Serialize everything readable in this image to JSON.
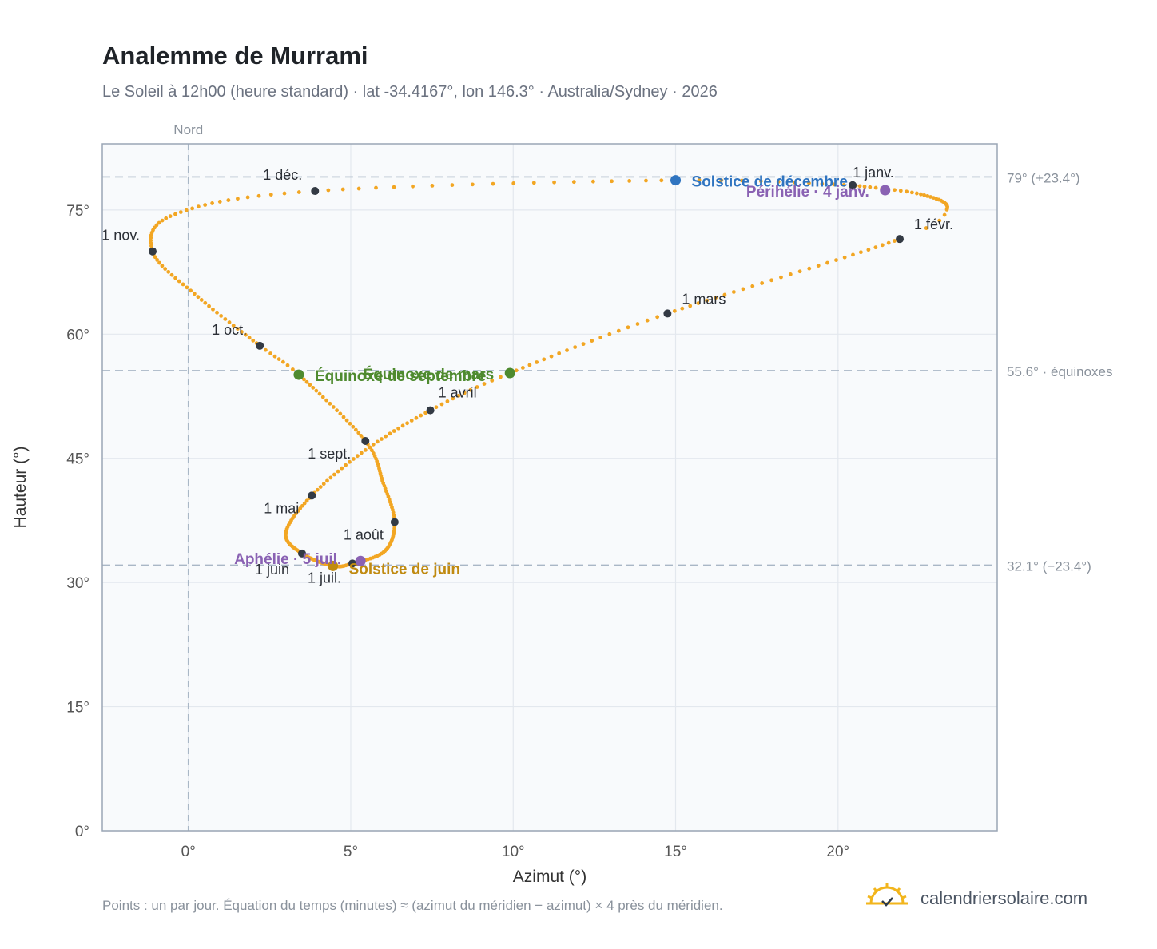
{
  "header": {
    "title": "Analemme de Murrami",
    "subtitle": "Le Soleil à 12h00 (heure standard) · lat -34.4167°, lon 146.3° · Australia/Sydney · 2026"
  },
  "footer": {
    "note": "Points : un par jour. Équation du temps (minutes) ≈ (azimut du méridien − azimut) × 4 près du méridien.",
    "brand": "calendriersolaire.com"
  },
  "colors": {
    "curve": "#f2a623",
    "month_marker": "#333a44",
    "equinox": "#4e8a2f",
    "december_solstice": "#2f74c0",
    "june_solstice": "#c08a10",
    "apsis": "#8a62b3",
    "reference_line": "#a9b7c6",
    "plot_background": "#f8fafc",
    "grid": "#e3e8ee"
  },
  "chart_data": {
    "type": "scatter",
    "title": "Analemme de Murrami",
    "xlabel": "Azimut (°)",
    "ylabel": "Hauteur (°)",
    "xlim": [
      -2.65,
      24.9
    ],
    "ylim": [
      0,
      83
    ],
    "x_ticks": [
      0,
      5,
      10,
      15,
      20
    ],
    "x_tick_labels": [
      "0°",
      "5°",
      "10°",
      "15°",
      "20°"
    ],
    "y_ticks": [
      0,
      15,
      30,
      45,
      60,
      75
    ],
    "y_tick_labels": [
      "0°",
      "15°",
      "30°",
      "45°",
      "60°",
      "75°"
    ],
    "grid": true,
    "north_line": {
      "x": 0,
      "label": "Nord"
    },
    "reference_lines": [
      {
        "y": 79.0,
        "label": "79° (+23.4°)"
      },
      {
        "y": 55.6,
        "label": "55.6° · équinoxes"
      },
      {
        "y": 32.1,
        "label": "32.1° (−23.4°)"
      }
    ],
    "month_markers": [
      {
        "label": "1 janv.",
        "x": 20.45,
        "y": 78.0
      },
      {
        "label": "1 févr.",
        "x": 21.9,
        "y": 71.5
      },
      {
        "label": "1 mars",
        "x": 14.75,
        "y": 62.5
      },
      {
        "label": "1 avril",
        "x": 7.45,
        "y": 50.8
      },
      {
        "label": "1 mai",
        "x": 3.8,
        "y": 40.5
      },
      {
        "label": "1 juin",
        "x": 3.5,
        "y": 33.5
      },
      {
        "label": "1 juil.",
        "x": 5.05,
        "y": 32.3
      },
      {
        "label": "1 août",
        "x": 6.35,
        "y": 37.3
      },
      {
        "label": "1 sept.",
        "x": 5.45,
        "y": 47.1
      },
      {
        "label": "1 oct.",
        "x": 2.2,
        "y": 58.6
      },
      {
        "label": "1 nov.",
        "x": -1.1,
        "y": 70.0
      },
      {
        "label": "1 déc.",
        "x": 3.9,
        "y": 77.3
      }
    ],
    "events": [
      {
        "label": "Solstice de décembre",
        "x": 15.0,
        "y": 78.6,
        "kind": "december_solstice"
      },
      {
        "label": "Périhélie · 4 janv.",
        "x": 21.45,
        "y": 77.4,
        "kind": "apsis"
      },
      {
        "label": "Équinoxe de mars",
        "x": 9.9,
        "y": 55.3,
        "kind": "equinox"
      },
      {
        "label": "Équinoxe de septembre",
        "x": 3.4,
        "y": 55.1,
        "kind": "equinox"
      },
      {
        "label": "Solstice de juin",
        "x": 4.45,
        "y": 32.0,
        "kind": "june_solstice"
      },
      {
        "label": "Aphélie · 5 juil.",
        "x": 5.3,
        "y": 32.6,
        "kind": "apsis"
      }
    ],
    "daily_path_keypoints": [
      {
        "day": 1,
        "x": 20.45,
        "y": 78.0
      },
      {
        "day": 14,
        "x": 22.55,
        "y": 76.9
      },
      {
        "day": 28,
        "x": 23.35,
        "y": 75.05
      },
      {
        "day": 32,
        "x": 21.9,
        "y": 71.5
      },
      {
        "day": 60,
        "x": 14.75,
        "y": 62.5
      },
      {
        "day": 79,
        "x": 9.9,
        "y": 55.3
      },
      {
        "day": 91,
        "x": 7.45,
        "y": 50.8
      },
      {
        "day": 106,
        "x": 5.45,
        "y": 46.0
      },
      {
        "day": 121,
        "x": 3.8,
        "y": 40.5
      },
      {
        "day": 137,
        "x": 3.0,
        "y": 36.0
      },
      {
        "day": 152,
        "x": 3.5,
        "y": 33.5
      },
      {
        "day": 172,
        "x": 4.45,
        "y": 32.0
      },
      {
        "day": 182,
        "x": 5.05,
        "y": 32.3
      },
      {
        "day": 197,
        "x": 6.05,
        "y": 33.8
      },
      {
        "day": 213,
        "x": 6.35,
        "y": 37.3
      },
      {
        "day": 228,
        "x": 6.0,
        "y": 42.0
      },
      {
        "day": 244,
        "x": 5.45,
        "y": 47.1
      },
      {
        "day": 266,
        "x": 3.4,
        "y": 55.1
      },
      {
        "day": 274,
        "x": 2.2,
        "y": 58.6
      },
      {
        "day": 290,
        "x": 0.3,
        "y": 64.5
      },
      {
        "day": 305,
        "x": -1.1,
        "y": 70.0
      },
      {
        "day": 320,
        "x": -0.4,
        "y": 74.5
      },
      {
        "day": 335,
        "x": 3.9,
        "y": 77.3
      },
      {
        "day": 355,
        "x": 15.0,
        "y": 78.6
      },
      {
        "day": 366,
        "x": 20.45,
        "y": 78.0
      }
    ]
  }
}
